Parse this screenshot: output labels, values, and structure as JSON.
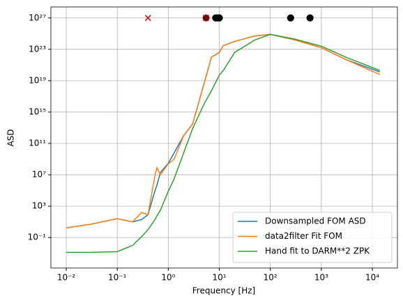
{
  "chart_data": {
    "type": "line",
    "xlabel": "Frequency [Hz]",
    "ylabel": "ASD",
    "xscale": "log",
    "yscale": "log",
    "grid": true,
    "legend": "lower right",
    "xlim": [
      0.005,
      31000
    ],
    "ylim": [
      1.3e-05,
      2.5e+28
    ],
    "xticks": [
      {
        "value": 0.01,
        "label": "10⁻²"
      },
      {
        "value": 0.1,
        "label": "10⁻¹"
      },
      {
        "value": 1,
        "label": "10⁰"
      },
      {
        "value": 10,
        "label": "10¹"
      },
      {
        "value": 100,
        "label": "10²"
      },
      {
        "value": 1000,
        "label": "10³"
      },
      {
        "value": 10000,
        "label": "10⁴"
      }
    ],
    "yticks": [
      {
        "value": 0.1,
        "label": "10⁻¹"
      },
      {
        "value": 1000,
        "label": "10³"
      },
      {
        "value": 10000000.0,
        "label": "10⁷"
      },
      {
        "value": 100000000000.0,
        "label": "10¹¹"
      },
      {
        "value": 1000000000000000.0,
        "label": "10¹⁵"
      },
      {
        "value": 1e+19,
        "label": "10¹⁹"
      },
      {
        "value": 1e+23,
        "label": "10²³"
      },
      {
        "value": 1e+27,
        "label": "10²⁷"
      }
    ],
    "x": [
      0.01,
      0.03,
      0.1,
      0.2,
      0.3,
      0.4,
      0.55,
      0.6,
      0.7,
      1,
      1.3,
      2,
      3,
      5,
      7,
      10,
      12,
      20,
      50,
      100,
      300,
      1000,
      3000,
      14000
    ],
    "series": [
      {
        "name": "Downsampled FOM ASD",
        "color": "#1f77b4",
        "values": [
          1.7,
          5,
          25,
          10,
          20,
          80,
          100000.0,
          500000.0,
          20000000.0,
          300000000.0,
          6000000000.0,
          1000000000000.0,
          30000000000000.0,
          4e+18,
          1e+22,
          4e+22,
          3e+23,
          1e+24,
          5e+24,
          8e+24,
          1.6e+24,
          1.6e+23,
          5e+21,
          1.3e+20
        ]
      },
      {
        "name": "data2filter Fit FOM",
        "color": "#ff7f0e",
        "values": [
          1.7,
          5,
          25,
          10,
          160,
          80,
          10000000.0,
          80000000.0,
          10000000.0,
          250000000.0,
          1000000000.0,
          1000000000000.0,
          30000000000000.0,
          4e+18,
          1e+22,
          4e+22,
          3e+23,
          1e+24,
          5e+24,
          8e+24,
          1.6e+24,
          1.6e+23,
          5e+21,
          6e+19
        ]
      },
      {
        "name": "Hand fit to DARM**2 ZPK",
        "color": "#2ca02c",
        "values": [
          0.0013,
          0.0013,
          0.0016,
          0.01,
          0.13,
          1,
          20,
          60,
          300,
          80000.0,
          3000000.0,
          6000000000.0,
          8000000000000.0,
          1e+16,
          5e+17,
          5e+19,
          2e+20,
          4e+22,
          1.6e+24,
          8e+24,
          2e+24,
          2.5e+23,
          1e+22,
          2e+20
        ]
      }
    ],
    "markers": [
      {
        "marker": "o",
        "color": "#000000",
        "edge": "#000000",
        "x": [
          8.5,
          9.2,
          10,
          250,
          600
        ],
        "values": [
          1e+27,
          1e+27,
          1e+27,
          1e+27,
          1e+27
        ]
      },
      {
        "marker": "o",
        "color": "#000000",
        "edge": "#d62728",
        "x": [
          5.5
        ],
        "values": [
          1e+27
        ]
      },
      {
        "marker": "x",
        "color": "#cc0000",
        "x": [
          0.4,
          5.5
        ],
        "values": [
          1e+27,
          1e+27
        ]
      }
    ]
  }
}
